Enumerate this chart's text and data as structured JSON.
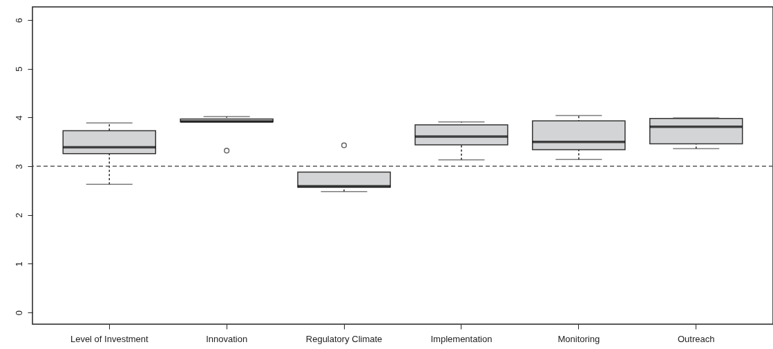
{
  "chart_data": {
    "type": "box",
    "categories": [
      "Level of Investment",
      "Innovation",
      "Regulatory Climate",
      "Implementation",
      "Monitoring",
      "Outreach"
    ],
    "boxes": [
      {
        "low": 2.63,
        "q1": 3.26,
        "median": 3.39,
        "q3": 3.73,
        "high": 3.89
      },
      {
        "low": 3.91,
        "q1": 3.91,
        "median": 3.92,
        "q3": 3.97,
        "high": 4.02,
        "outliers": [
          3.32
        ]
      },
      {
        "low": 2.48,
        "q1": 2.57,
        "median": 2.59,
        "q3": 2.88,
        "high": 2.88,
        "outliers": [
          3.43
        ]
      },
      {
        "low": 3.13,
        "q1": 3.44,
        "median": 3.61,
        "q3": 3.85,
        "high": 3.91
      },
      {
        "low": 3.14,
        "q1": 3.34,
        "median": 3.5,
        "q3": 3.93,
        "high": 4.04
      },
      {
        "low": 3.36,
        "q1": 3.46,
        "median": 3.81,
        "q3": 3.98,
        "high": 3.99
      }
    ],
    "color": "#d3d4d6",
    "ylim": [
      -0.24,
      6.27
    ],
    "yticks": [
      0,
      1,
      2,
      3,
      4,
      5,
      6
    ],
    "grid": false,
    "ref_lines": [
      {
        "axis": "y",
        "value": 3,
        "line_style": "dashed"
      }
    ]
  }
}
